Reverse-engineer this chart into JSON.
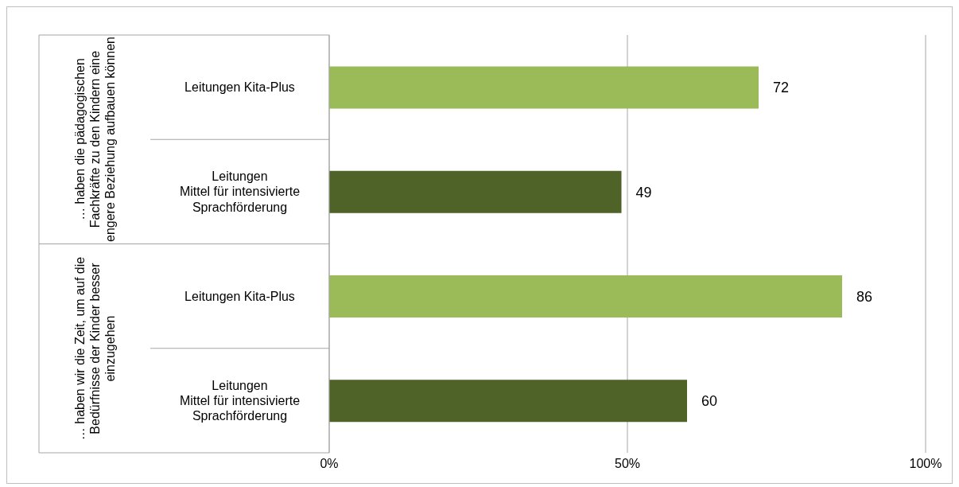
{
  "chart_data": {
    "type": "bar",
    "orientation": "horizontal",
    "categories": [
      "Leitungen Kita-Plus",
      "Leitungen\nMittel für intensivierte\nSprachförderung",
      "Leitungen Kita-Plus",
      "Leitungen\nMittel für intensivierte\nSprachförderung"
    ],
    "values": [
      72,
      49,
      86,
      60
    ],
    "colors": [
      "#9bbb59",
      "#4f6228",
      "#9bbb59",
      "#4f6228"
    ],
    "xlim": [
      0,
      100
    ],
    "xticks": [
      {
        "value": 0,
        "label": "0%"
      },
      {
        "value": 50,
        "label": "50%"
      },
      {
        "value": 100,
        "label": "100%"
      }
    ],
    "grid": "x",
    "data_labels": true,
    "legend": false,
    "annotations": [
      "… haben die pädagogischen Fachkräfte zu den Kindern eine engere Beziehung aufbauen können",
      "… haben wir die Zeit, um auf die Bedürfnisse der Kinder besser einzugehen"
    ]
  }
}
